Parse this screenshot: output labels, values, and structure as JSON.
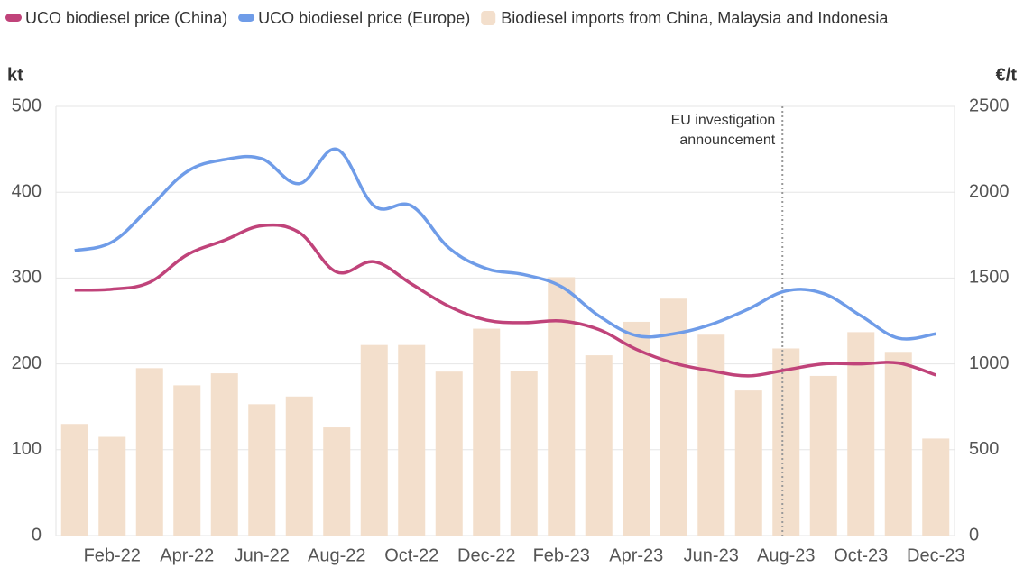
{
  "chart_data": {
    "type": "bar-line",
    "categories": [
      null,
      "Feb-22",
      null,
      "Apr-22",
      null,
      "Jun-22",
      null,
      "Aug-22",
      null,
      "Oct-22",
      null,
      "Dec-22",
      null,
      "Feb-23",
      null,
      "Apr-23",
      null,
      "Jun-23",
      null,
      "Aug-23",
      null,
      "Oct-23",
      null,
      "Dec-23"
    ],
    "y_label": "kt",
    "y2_label": "€/t",
    "ylim": [
      0,
      500
    ],
    "yticks": [
      0,
      100,
      200,
      300,
      400,
      500
    ],
    "y2lim": [
      0,
      2500
    ],
    "y2ticks": [
      0,
      500,
      1000,
      1500,
      2000,
      2500
    ],
    "grid": true,
    "legend": "top-left",
    "series": [
      {
        "name": "UCO biodiesel price (China)",
        "type": "line",
        "axis": "y2",
        "color": "#c0437a",
        "values": [
          1430,
          1435,
          1475,
          1635,
          1720,
          1805,
          1765,
          1535,
          1595,
          1465,
          1335,
          1255,
          1240,
          1250,
          1200,
          1085,
          1005,
          960,
          930,
          965,
          1000,
          1000,
          1005,
          935
        ]
      },
      {
        "name": "UCO biodiesel price (Europe)",
        "type": "line",
        "axis": "y2",
        "color": "#6f9ce8",
        "values": [
          1660,
          1710,
          1910,
          2120,
          2190,
          2195,
          2050,
          2250,
          1920,
          1920,
          1675,
          1555,
          1520,
          1450,
          1280,
          1165,
          1175,
          1230,
          1320,
          1425,
          1410,
          1280,
          1150,
          1175
        ]
      },
      {
        "name": "Biodiesel imports from China, Malaysia and Indonesia",
        "type": "bar",
        "color": "#f3dfcc",
        "values": [
          130,
          115,
          195,
          175,
          189,
          153,
          162,
          126,
          222,
          222,
          191,
          241,
          192,
          301,
          210,
          249,
          276,
          234,
          169,
          218,
          186,
          237,
          214,
          113
        ]
      }
    ],
    "annotation": {
      "text": [
        "EU investigation",
        "announcement"
      ],
      "at": "Aug-23"
    }
  }
}
